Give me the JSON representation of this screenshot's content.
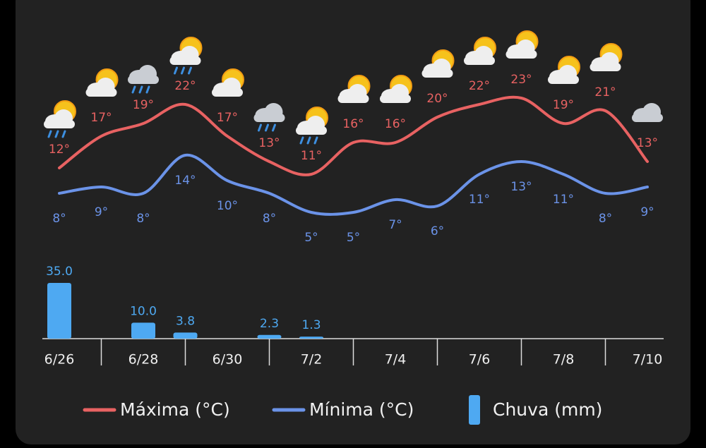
{
  "chart_data": {
    "type": "weather",
    "categories": [
      "6/26",
      null,
      "6/28",
      null,
      "6/30",
      null,
      "7/2",
      null,
      "7/4",
      null,
      "7/6",
      null,
      "7/8",
      null,
      "7/10"
    ],
    "ylim": [
      0,
      30
    ],
    "y2lim": [
      0,
      35
    ],
    "series": [
      {
        "name": "Máxima (°C)",
        "color": "#e86262",
        "type": "line",
        "values": [
          12,
          17,
          19,
          22,
          17,
          13,
          11,
          16,
          16,
          20,
          22,
          23,
          19,
          21,
          13
        ],
        "value_labels": [
          "12°",
          "17°",
          "19°",
          "22°",
          "17°",
          "13°",
          "11°",
          "16°",
          "16°",
          "20°",
          "22°",
          "23°",
          "19°",
          "21°",
          "13°"
        ]
      },
      {
        "name": "Mínima (°C)",
        "color": "#6b93e8",
        "type": "line",
        "values": [
          8,
          9,
          8,
          14,
          10,
          8,
          5,
          5,
          7,
          6,
          11,
          13,
          11,
          8,
          9
        ],
        "value_labels": [
          "8°",
          "9°",
          "8°",
          "14°",
          "10°",
          "8°",
          "5°",
          "5°",
          "7°",
          "6°",
          "11°",
          "13°",
          "11°",
          "8°",
          "9°"
        ]
      },
      {
        "name": "Chuva (mm)",
        "color": "#4ea9f2",
        "type": "bar",
        "axis": "y2",
        "values": [
          35.0,
          null,
          10.0,
          3.8,
          null,
          2.3,
          1.3,
          null,
          null,
          null,
          null,
          null,
          null,
          null,
          null
        ],
        "value_labels": [
          "35.0",
          null,
          "10.0",
          "3.8",
          null,
          "2.3",
          "1.3",
          null,
          null,
          null,
          null,
          null,
          null,
          null,
          null
        ]
      }
    ]
  }
}
